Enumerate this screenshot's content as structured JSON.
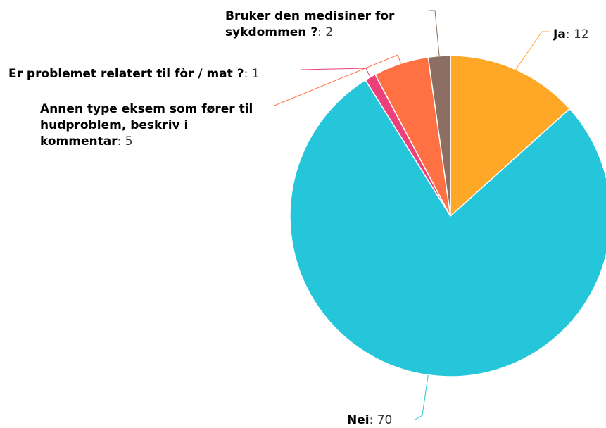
{
  "chart_data": {
    "type": "pie",
    "categories": [
      "Ja",
      "Nei",
      "Er problemet relatert til fòr / mat ?",
      "Annen type eksem som fører til hudproblem, beskriv i kommentar",
      "Bruker den medisiner for sykdommen ?"
    ],
    "values": [
      12,
      70,
      1,
      5,
      2
    ],
    "colors": [
      "#ffa726",
      "#26c6da",
      "#ec407a",
      "#ff7043",
      "#8d6e63"
    ],
    "separator": ": "
  }
}
